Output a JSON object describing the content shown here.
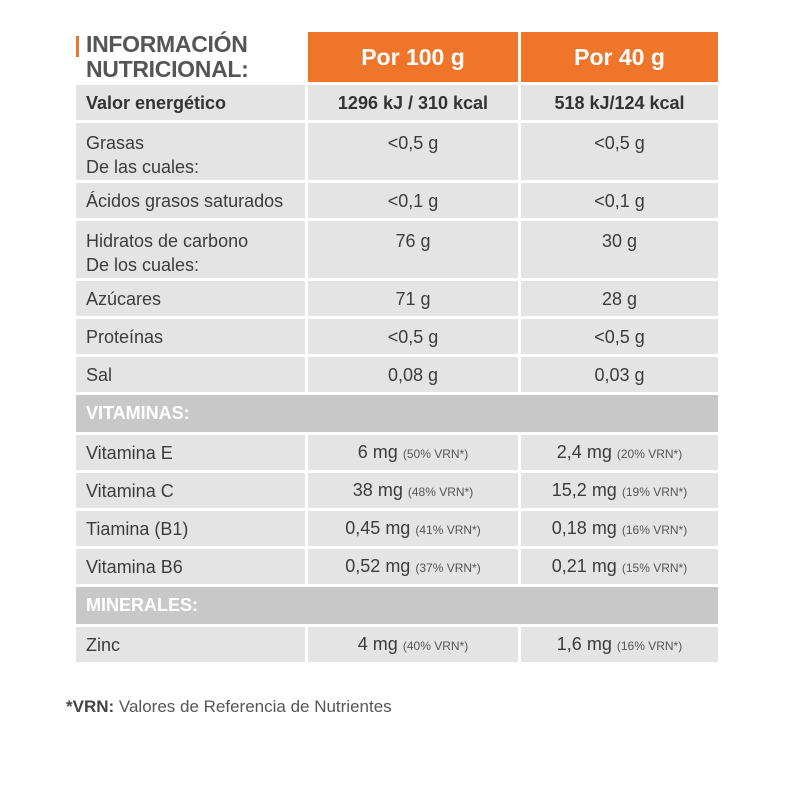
{
  "title": {
    "line1": "INFORMACIÓN",
    "line2": "NUTRICIONAL:"
  },
  "headers": {
    "col_a": "Por 100 g",
    "col_b": "Por 40 g"
  },
  "rows_main": [
    {
      "label": "Valor energético",
      "label2": "",
      "a": "1296 kJ / 310 kcal",
      "b": "518 kJ/124 kcal"
    },
    {
      "label": "Grasas",
      "label2": "De las cuales:",
      "a": "<0,5 g",
      "b": "<0,5 g"
    },
    {
      "label": "Ácidos grasos saturados",
      "label2": "",
      "a": "<0,1 g",
      "b": "<0,1 g"
    },
    {
      "label": "Hidratos de carbono",
      "label2": "De los cuales:",
      "a": "76 g",
      "b": "30 g"
    },
    {
      "label": "Azúcares",
      "label2": "",
      "a": "71 g",
      "b": "28 g"
    },
    {
      "label": "Proteínas",
      "label2": "",
      "a": "<0,5 g",
      "b": "<0,5 g"
    },
    {
      "label": "Sal",
      "label2": "",
      "a": "0,08 g",
      "b": "0,03 g"
    }
  ],
  "vitamins_header": "VITAMINAS:",
  "vitamins": [
    {
      "label": "Vitamina E",
      "a": "6 mg",
      "a_vrn": "(50% VRN*)",
      "b": "2,4 mg",
      "b_vrn": "(20% VRN*)"
    },
    {
      "label": "Vitamina C",
      "a": "38 mg",
      "a_vrn": "(48% VRN*)",
      "b": "15,2 mg",
      "b_vrn": "(19% VRN*)"
    },
    {
      "label": "Tiamina (B1)",
      "a": "0,45 mg",
      "a_vrn": "(41% VRN*)",
      "b": "0,18 mg",
      "b_vrn": "(16% VRN*)"
    },
    {
      "label": "Vitamina B6",
      "a": "0,52 mg",
      "a_vrn": "(37% VRN*)",
      "b": "0,21 mg",
      "b_vrn": "(15% VRN*)"
    }
  ],
  "minerals_header": "MINERALES:",
  "minerals": [
    {
      "label": "Zinc",
      "a": "4 mg",
      "a_vrn": "(40% VRN*)",
      "b": "1,6 mg",
      "b_vrn": "(16% VRN*)"
    }
  ],
  "footnote": {
    "key": "*VRN:",
    "text": " Valores de Referencia de Nutrientes"
  },
  "colors": {
    "accent": "#ee7529",
    "row_bg": "#e4e4e4",
    "section_bg": "#c8c8c8"
  }
}
